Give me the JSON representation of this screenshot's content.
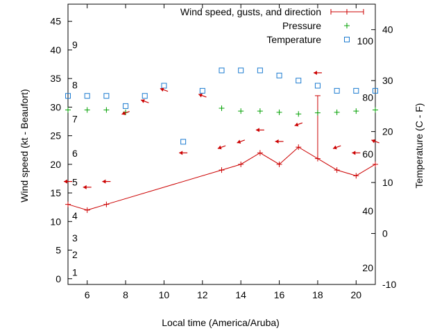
{
  "chart_data": {
    "type": "line",
    "xlabel": "Local time (America/Aruba)",
    "ylabel": "Wind speed (kt - Beaufort)",
    "y2label": "Temperature (C - F)",
    "xlim": [
      5,
      21
    ],
    "ylim": [
      -1,
      48
    ],
    "y2lim": [
      -10,
      45
    ],
    "x_ticks": [
      6,
      8,
      10,
      12,
      14,
      16,
      18,
      20
    ],
    "y_ticks": [
      0,
      5,
      10,
      15,
      20,
      25,
      30,
      35,
      40,
      45
    ],
    "y2_ticks": [
      -10,
      0,
      10,
      20,
      30,
      40
    ],
    "beaufort_ticks": [
      {
        "label": "1",
        "y": 1.1
      },
      {
        "label": "2",
        "y": 4.2
      },
      {
        "label": "3",
        "y": 7.1
      },
      {
        "label": "4",
        "y": 11.0
      },
      {
        "label": "5",
        "y": 16.9
      },
      {
        "label": "6",
        "y": 21.9
      },
      {
        "label": "7",
        "y": 27.9
      },
      {
        "label": "8",
        "y": 33.9
      },
      {
        "label": "9",
        "y": 40.9
      }
    ],
    "farenheit_ticks": [
      {
        "label": "20",
        "y2": -6.7
      },
      {
        "label": "40",
        "y2": 4.4
      },
      {
        "label": "60",
        "y2": 15.6
      },
      {
        "label": "80",
        "y2": 26.7
      },
      {
        "label": "100",
        "y2": 37.8
      }
    ],
    "legend": {
      "position": "top-right",
      "items": [
        "Wind speed, gusts, and direction",
        "Pressure",
        "Temperature"
      ]
    },
    "series": [
      {
        "name": "Wind speed, gusts, and direction",
        "color": "#cc0000",
        "x": [
          5,
          6,
          7,
          13,
          14,
          15,
          16,
          17,
          18,
          19,
          20,
          21
        ],
        "values": [
          13,
          12,
          13,
          19,
          20,
          22,
          20,
          23,
          21,
          19,
          18,
          20
        ],
        "gusts": [
          {
            "x": 18,
            "value": 32
          }
        ]
      },
      {
        "name": "Pressure",
        "color": "#00a000",
        "marker": "plus",
        "x": [
          5,
          6,
          7,
          8,
          13,
          14,
          15,
          16,
          17,
          18,
          19,
          20,
          21
        ],
        "values": [
          29.5,
          29.5,
          29.5,
          29.1,
          29.8,
          29.3,
          29.3,
          29.1,
          28.8,
          29.0,
          29.1,
          29.3,
          29.5
        ]
      },
      {
        "name": "Temperature",
        "color": "#1a7ad0",
        "marker": "square",
        "x": [
          5,
          6,
          7,
          8,
          9,
          10,
          11,
          12,
          13,
          14,
          15,
          16,
          17,
          18,
          19,
          20,
          21
        ],
        "values_y2": [
          27,
          27,
          27,
          25,
          27,
          29,
          18,
          28,
          32,
          32,
          32,
          31,
          30,
          29,
          28,
          28,
          28
        ]
      }
    ],
    "wind_arrows": {
      "color": "#cc0000",
      "points": [
        {
          "x": 5,
          "y": 17,
          "dir": "left"
        },
        {
          "x": 6,
          "y": 16,
          "dir": "left"
        },
        {
          "x": 7,
          "y": 17,
          "dir": "left"
        },
        {
          "x": 8,
          "y": 29,
          "dir": "down-left"
        },
        {
          "x": 9,
          "y": 31,
          "dir": "up-left"
        },
        {
          "x": 10,
          "y": 33,
          "dir": "up-left"
        },
        {
          "x": 11,
          "y": 22,
          "dir": "left"
        },
        {
          "x": 12,
          "y": 32,
          "dir": "up-left"
        },
        {
          "x": 13,
          "y": 23,
          "dir": "down-left"
        },
        {
          "x": 14,
          "y": 24,
          "dir": "down-left"
        },
        {
          "x": 15,
          "y": 26,
          "dir": "left"
        },
        {
          "x": 16,
          "y": 24,
          "dir": "left"
        },
        {
          "x": 17,
          "y": 27,
          "dir": "down-left"
        },
        {
          "x": 18,
          "y": 36,
          "dir": "left"
        },
        {
          "x": 19,
          "y": 23,
          "dir": "down-left"
        },
        {
          "x": 20,
          "y": 22,
          "dir": "left"
        },
        {
          "x": 21,
          "y": 24,
          "dir": "up-left"
        }
      ]
    }
  }
}
